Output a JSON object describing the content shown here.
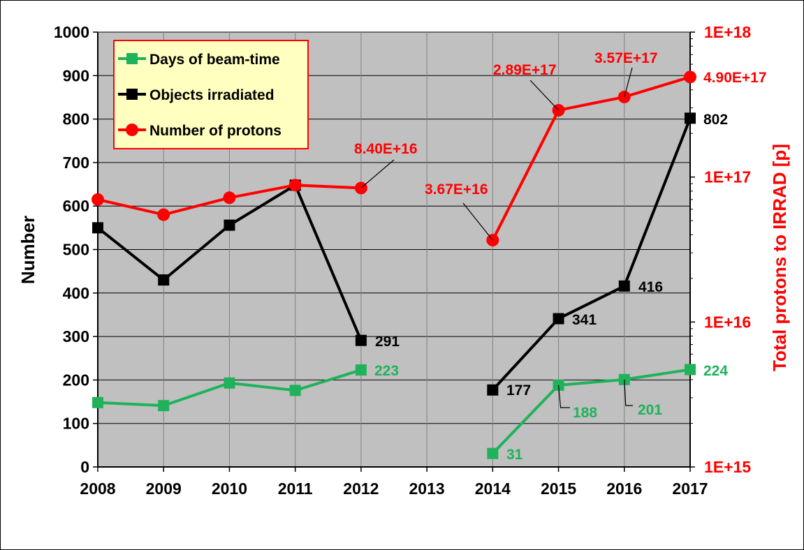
{
  "chart_data": {
    "type": "line",
    "x_categories": [
      "2008",
      "2009",
      "2010",
      "2011",
      "2012",
      "2013",
      "2014",
      "2015",
      "2016",
      "2017"
    ],
    "y_left": {
      "label": "Number",
      "min": 0,
      "max": 1000,
      "step": 100,
      "ticks": [
        "0",
        "100",
        "200",
        "300",
        "400",
        "500",
        "600",
        "700",
        "800",
        "900",
        "1000"
      ]
    },
    "y_right": {
      "label": "Total protons to IRRAD [p]",
      "scale": "log",
      "min": 1000000000000000.0,
      "max": 1e+18,
      "ticks": [
        "1E+15",
        "1E+16",
        "1E+17",
        "1E+18"
      ],
      "tick_values": [
        1000000000000000.0,
        1e+16,
        1e+17,
        1e+18
      ]
    },
    "grid": true,
    "legend_position": "top-left",
    "series": [
      {
        "name": "Days of beam-time",
        "color": "#1fb25a",
        "marker": "square",
        "axis": "left",
        "values": [
          148,
          141,
          193,
          176,
          223,
          null,
          31,
          188,
          201,
          224
        ],
        "labels": [
          null,
          null,
          null,
          null,
          "223",
          null,
          "31",
          "188",
          "201",
          "224"
        ]
      },
      {
        "name": "Objects irradiated",
        "color": "#000000",
        "marker": "square",
        "axis": "left",
        "values": [
          550,
          430,
          556,
          648,
          291,
          null,
          177,
          341,
          416,
          802
        ],
        "labels": [
          null,
          null,
          null,
          null,
          "291",
          null,
          "177",
          "341",
          "416",
          "802"
        ]
      },
      {
        "name": "Number of protons",
        "color": "#ff0000",
        "marker": "circle",
        "axis": "right",
        "values": [
          7e+16,
          5.5e+16,
          7.2e+16,
          8.8e+16,
          8.4e+16,
          null,
          3.67e+16,
          2.89e+17,
          3.57e+17,
          4.9e+17
        ],
        "labels": [
          null,
          null,
          null,
          null,
          "8.40E+16",
          null,
          "3.67E+16",
          "2.89E+17",
          "3.57E+17",
          "4.90E+17"
        ]
      }
    ]
  }
}
